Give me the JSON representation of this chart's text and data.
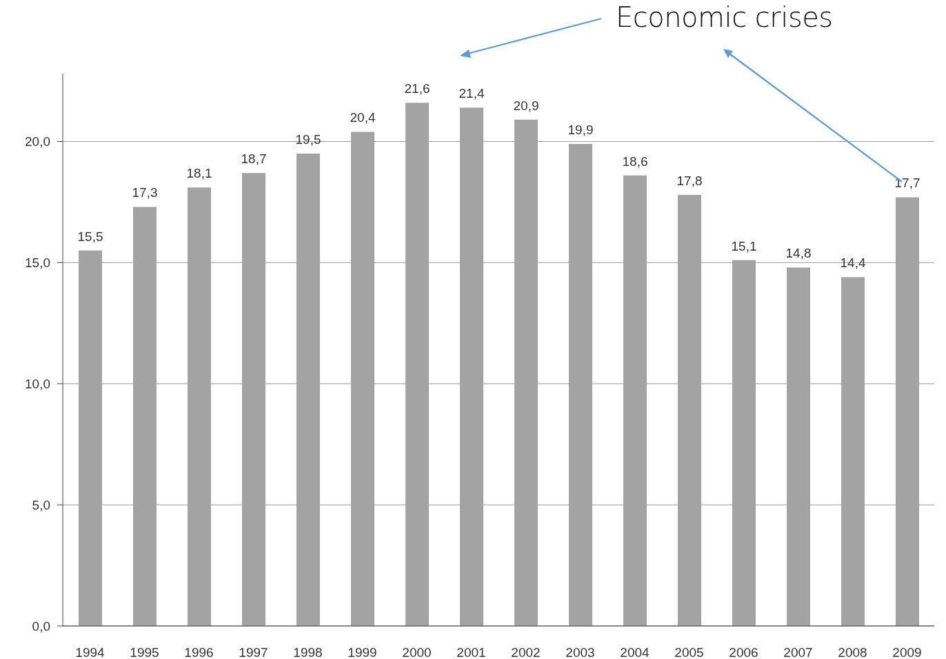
{
  "chart_data": {
    "type": "bar",
    "annotations": [
      "Economic crises"
    ],
    "categories": [
      "1994",
      "1995",
      "1996",
      "1997",
      "1998",
      "1999",
      "2000",
      "2001",
      "2002",
      "2003",
      "2004",
      "2005",
      "2006",
      "2007",
      "2008",
      "2009"
    ],
    "values": [
      15.5,
      17.3,
      18.1,
      18.7,
      19.5,
      20.4,
      21.6,
      21.4,
      20.9,
      19.9,
      18.6,
      17.8,
      15.1,
      14.8,
      14.4,
      17.7
    ],
    "value_labels": [
      "15,5",
      "17,3",
      "18,1",
      "18,7",
      "19,5",
      "20,4",
      "21,6",
      "21,4",
      "20,9",
      "19,9",
      "18,6",
      "17,8",
      "15,1",
      "14,8",
      "14,4",
      "17,7"
    ],
    "color": "#a3a3a3",
    "ylim": [
      0,
      22.8
    ],
    "yticks": [
      {
        "value": 0,
        "label": "0,0"
      },
      {
        "value": 5,
        "label": "5,0"
      },
      {
        "value": 10,
        "label": "10,0"
      },
      {
        "value": 15,
        "label": "15,0"
      },
      {
        "value": 20,
        "label": "20,0"
      }
    ],
    "grid": "y"
  }
}
